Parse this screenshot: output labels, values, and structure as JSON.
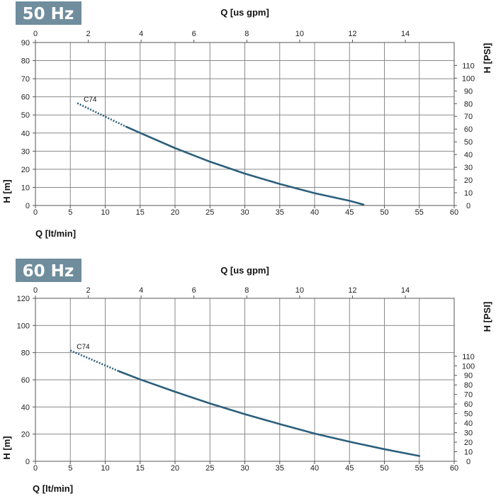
{
  "chart_data": [
    {
      "type": "line",
      "badge": "50 Hz",
      "xlabel": "Q [lt/min]",
      "x2label": "Q [us gpm]",
      "ylabel": "H [m]",
      "y2label": "H [PSI]",
      "xlim": [
        0,
        60
      ],
      "ylim": [
        0,
        90
      ],
      "x2lim": [
        0,
        15.85
      ],
      "y2lim": [
        0,
        128
      ],
      "grid": true,
      "xticks": [
        0,
        5,
        10,
        15,
        20,
        25,
        30,
        35,
        40,
        45,
        50,
        55,
        60
      ],
      "yticks": [
        0,
        10,
        20,
        30,
        40,
        50,
        60,
        70,
        80,
        90
      ],
      "x2ticks": [
        0,
        2,
        4,
        6,
        8,
        10,
        12,
        14
      ],
      "y2ticks": [
        0,
        10,
        20,
        30,
        40,
        50,
        60,
        70,
        80,
        90,
        100,
        110
      ],
      "series": [
        {
          "name": "C74",
          "dotted": {
            "x": [
              6,
              13
            ],
            "y": [
              56.5,
              43.5
            ]
          },
          "solid": {
            "x": [
              13,
              15,
              20,
              25,
              30,
              35,
              40,
              45,
              47
            ],
            "y": [
              43.5,
              40.1,
              31.7,
              24.2,
              17.6,
              11.9,
              6.8,
              2.6,
              0.5
            ]
          }
        }
      ]
    },
    {
      "type": "line",
      "badge": "60 Hz",
      "xlabel": "Q [lt/min]",
      "x2label": "Q [us gpm]",
      "ylabel": "H [m]",
      "y2label": "H [PSI]",
      "xlim": [
        0,
        60
      ],
      "ylim": [
        0,
        120
      ],
      "x2lim": [
        0,
        15.85
      ],
      "y2lim": [
        0,
        170.7
      ],
      "grid": true,
      "xticks": [
        0,
        5,
        10,
        15,
        20,
        25,
        30,
        35,
        40,
        45,
        50,
        55,
        60
      ],
      "yticks": [
        0,
        20,
        40,
        60,
        80,
        100,
        120
      ],
      "x2ticks": [
        0,
        2,
        4,
        6,
        8,
        10,
        12,
        14
      ],
      "y2ticks": [
        0,
        10,
        20,
        30,
        40,
        50,
        60,
        70,
        80,
        90,
        100,
        110
      ],
      "series": [
        {
          "name": "C74",
          "dotted": {
            "x": [
              5,
              12
            ],
            "y": [
              81.6,
              66.2
            ]
          },
          "solid": {
            "x": [
              12,
              15,
              20,
              25,
              30,
              35,
              40,
              45,
              50,
              55
            ],
            "y": [
              66.2,
              60.3,
              51.2,
              42.6,
              34.7,
              27.4,
              20.4,
              14.4,
              8.9,
              3.9
            ]
          }
        }
      ]
    }
  ]
}
